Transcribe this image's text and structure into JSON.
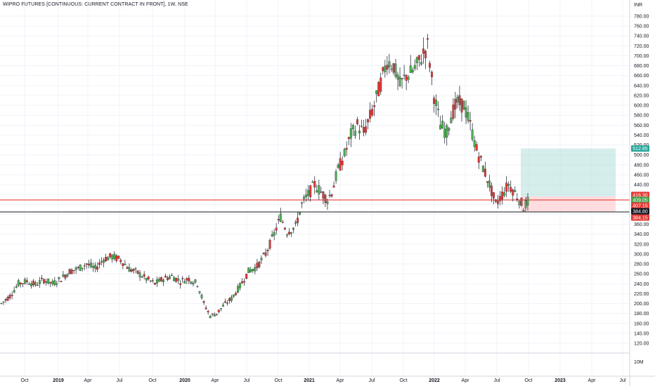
{
  "header": {
    "title": "WIPRO FUTURES [CONTINUOUS: CURRENT CONTRACT IN FRONT], 1W, NSE",
    "currency": "INR",
    "volume_tick": "10M"
  },
  "colors": {
    "up": "#4caf50",
    "down": "#e53935",
    "wick": "#131722",
    "grid": "#f0f3fa",
    "axis_line": "#d1d4dc",
    "resistance_line": "#e53935",
    "support_line": "#131722",
    "target_zone": "#b2dfdb",
    "stop_zone": "#ffcdd2"
  },
  "chart_data": {
    "type": "candlestick",
    "title": "WIPRO FUTURES [CONTINUOUS: CURRENT CONTRACT IN FRONT], 1W, NSE",
    "y_unit": "INR",
    "ylim": [
      100,
      790
    ],
    "y_ticks": [
      120,
      140,
      160,
      180,
      200,
      220,
      240,
      260,
      280,
      300,
      320,
      340,
      360,
      380,
      400,
      420,
      440,
      460,
      480,
      500,
      520,
      540,
      560,
      580,
      600,
      620,
      640,
      660,
      680,
      700,
      720,
      740,
      760,
      780
    ],
    "x_ticks": [
      "Oct",
      "2019",
      "Apr",
      "Jul",
      "Oct",
      "2020",
      "Apr",
      "Jul",
      "Oct",
      "2021",
      "Apr",
      "Jul",
      "Oct",
      "2022",
      "Apr",
      "Jul",
      "Oct",
      "2023",
      "Apr",
      "Jul"
    ],
    "x_tick_bold": [
      "2019",
      "2020",
      "2021",
      "2022",
      "2023"
    ],
    "weekly_close_anchors": [
      [
        0,
        200
      ],
      [
        4,
        215
      ],
      [
        8,
        240
      ],
      [
        12,
        245
      ],
      [
        16,
        238
      ],
      [
        20,
        248
      ],
      [
        24,
        240
      ],
      [
        28,
        250
      ],
      [
        32,
        265
      ],
      [
        36,
        270
      ],
      [
        40,
        280
      ],
      [
        44,
        270
      ],
      [
        48,
        290
      ],
      [
        52,
        295
      ],
      [
        56,
        288
      ],
      [
        60,
        270
      ],
      [
        64,
        262
      ],
      [
        68,
        250
      ],
      [
        72,
        240
      ],
      [
        76,
        250
      ],
      [
        80,
        255
      ],
      [
        84,
        245
      ],
      [
        88,
        250
      ],
      [
        92,
        240
      ],
      [
        95,
        200
      ],
      [
        98,
        175
      ],
      [
        101,
        180
      ],
      [
        104,
        195
      ],
      [
        108,
        210
      ],
      [
        112,
        235
      ],
      [
        116,
        265
      ],
      [
        120,
        275
      ],
      [
        124,
        300
      ],
      [
        128,
        340
      ],
      [
        131,
        375
      ],
      [
        134,
        345
      ],
      [
        138,
        355
      ],
      [
        141,
        400
      ],
      [
        144,
        420
      ],
      [
        147,
        440
      ],
      [
        150,
        425
      ],
      [
        153,
        410
      ],
      [
        155,
        425
      ],
      [
        158,
        470
      ],
      [
        161,
        500
      ],
      [
        164,
        540
      ],
      [
        167,
        560
      ],
      [
        170,
        545
      ],
      [
        172,
        565
      ],
      [
        175,
        600
      ],
      [
        178,
        645
      ],
      [
        181,
        690
      ],
      [
        184,
        680
      ],
      [
        187,
        640
      ],
      [
        190,
        660
      ],
      [
        192,
        665
      ],
      [
        195,
        680
      ],
      [
        198,
        705
      ],
      [
        200,
        720
      ],
      [
        203,
        620
      ],
      [
        206,
        560
      ],
      [
        209,
        545
      ],
      [
        211,
        580
      ],
      [
        214,
        605
      ],
      [
        217,
        600
      ],
      [
        220,
        560
      ],
      [
        223,
        510
      ],
      [
        226,
        475
      ],
      [
        229,
        440
      ],
      [
        232,
        400
      ],
      [
        235,
        420
      ],
      [
        238,
        440
      ],
      [
        240,
        430
      ],
      [
        243,
        410
      ],
      [
        245,
        395
      ],
      [
        247,
        405
      ]
    ],
    "levels": {
      "resistance": 416.3,
      "current_price": 409.05,
      "current_alt": 407.15,
      "support": 384.8,
      "stop": 384.15,
      "target": 512.85
    },
    "position_tool": {
      "entry": 416.3,
      "target": 512.85,
      "stop": 384.15,
      "start_label": "Sep",
      "end_label": "Jun"
    }
  },
  "price_badges": [
    {
      "id": "target",
      "label": "512.85",
      "color": "#26a69a"
    },
    {
      "id": "resistance",
      "label": "416.30",
      "color": "#e53935"
    },
    {
      "id": "current",
      "label": "409.05",
      "color": "#43a047"
    },
    {
      "id": "current_alt",
      "label": "407.15",
      "color": "#e53935"
    },
    {
      "id": "support",
      "label": "384.80",
      "color": "#131722"
    },
    {
      "id": "stop",
      "label": "384.15",
      "color": "#e53935"
    }
  ]
}
